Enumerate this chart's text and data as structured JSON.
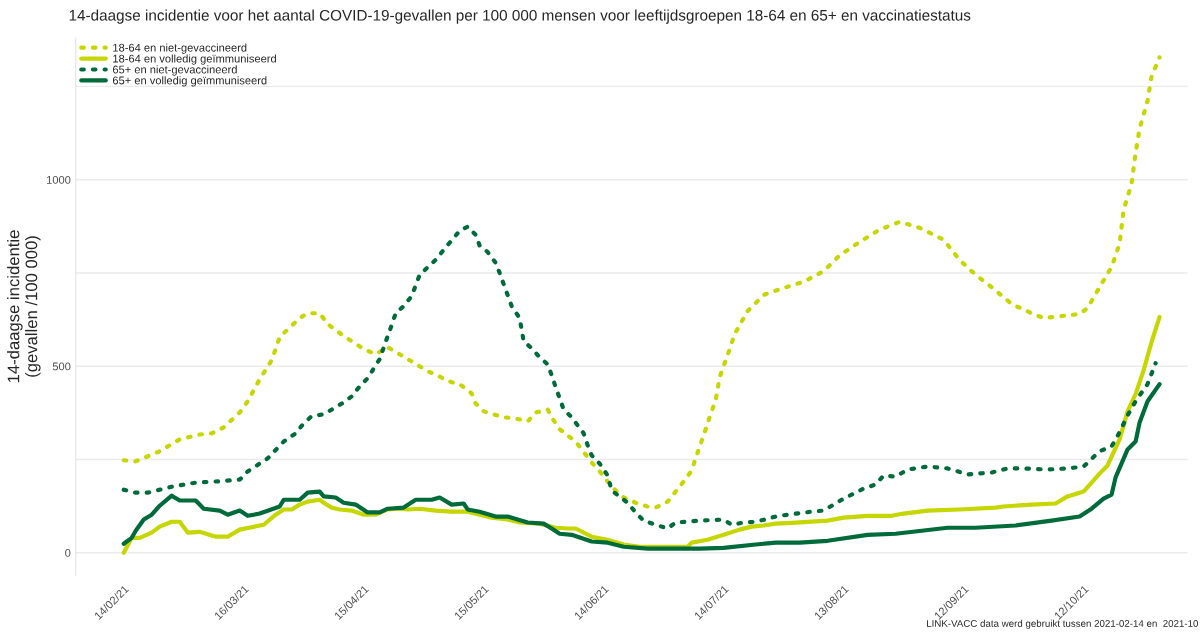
{
  "chart_data": {
    "type": "line",
    "title": "14-daagse incidentie voor het aantal COVID-19-gevallen per 100 000 mensen voor leeftijdsgroepen 18-64 en 65+ en vaccinatiestatus",
    "ylabel": "14-daagse incidentie\n(gevallen /100 000)",
    "annotations": [
      "LINK-VACC data werd gebruikt tussen 2021-02-14 en  2021-10"
    ],
    "xlim": [
      "2021-02-02",
      "2021-11-07"
    ],
    "xticks": [
      {
        "value": "2021-02-14",
        "label": "14/02/21"
      },
      {
        "value": "2021-03-16",
        "label": "16/03/21"
      },
      {
        "value": "2021-04-15",
        "label": "15/04/21"
      },
      {
        "value": "2021-05-15",
        "label": "15/05/21"
      },
      {
        "value": "2021-06-14",
        "label": "14/06/21"
      },
      {
        "value": "2021-07-14",
        "label": "14/07/21"
      },
      {
        "value": "2021-08-13",
        "label": "13/08/21"
      },
      {
        "value": "2021-09-12",
        "label": "12/09/21"
      },
      {
        "value": "2021-10-12",
        "label": "12/10/21"
      }
    ],
    "yticks": [
      0,
      {
        "value": 250,
        "label": null
      },
      500,
      {
        "value": 750,
        "label": null
      },
      1000,
      {
        "value": 1250,
        "label": null
      }
    ],
    "ylim": [
      -60,
      1380
    ],
    "grid": "y",
    "legend": "top left",
    "series": [
      {
        "name": "18-64 en niet-gevaccineerd",
        "color": "#c5d600",
        "line_style": "dotted",
        "x": [
          "2021-02-14",
          "2021-02-17",
          "2021-02-23",
          "2021-02-28",
          "2021-03-05",
          "2021-03-08",
          "2021-03-11",
          "2021-03-15",
          "2021-03-17",
          "2021-03-20",
          "2021-03-23",
          "2021-03-25",
          "2021-03-30",
          "2021-04-01",
          "2021-04-04",
          "2021-04-06",
          "2021-04-10",
          "2021-04-15",
          "2021-04-18",
          "2021-04-21",
          "2021-04-26",
          "2021-05-01",
          "2021-05-07",
          "2021-05-09",
          "2021-05-12",
          "2021-05-13",
          "2021-05-15",
          "2021-05-20",
          "2021-05-23",
          "2021-05-26",
          "2021-05-28",
          "2021-05-31",
          "2021-06-01",
          "2021-06-03",
          "2021-06-07",
          "2021-06-11",
          "2021-06-13",
          "2021-06-15",
          "2021-06-17",
          "2021-06-19",
          "2021-06-22",
          "2021-06-25",
          "2021-06-27",
          "2021-06-30",
          "2021-07-02",
          "2021-07-04",
          "2021-07-06",
          "2021-07-07",
          "2021-07-09",
          "2021-07-11",
          "2021-07-12",
          "2021-07-13",
          "2021-07-14",
          "2021-07-15",
          "2021-07-16",
          "2021-07-17",
          "2021-07-20",
          "2021-07-24",
          "2021-07-26",
          "2021-08-01",
          "2021-08-03",
          "2021-08-08",
          "2021-08-12",
          "2021-08-17",
          "2021-08-22",
          "2021-08-27",
          "2021-09-01",
          "2021-09-07",
          "2021-09-11",
          "2021-09-15",
          "2021-09-19",
          "2021-09-24",
          "2021-09-29",
          "2021-10-02",
          "2021-10-11",
          "2021-10-13",
          "2021-10-16",
          "2021-10-19",
          "2021-10-21",
          "2021-10-22",
          "2021-10-24",
          "2021-10-25",
          "2021-10-26",
          "2021-10-28",
          "2021-10-29",
          "2021-10-31"
        ],
        "values": [
          248,
          245,
          272,
          304,
          317,
          320,
          336,
          376,
          406,
          465,
          516,
          578,
          629,
          642,
          642,
          613,
          581,
          546,
          532,
          551,
          519,
          487,
          457,
          452,
          427,
          400,
          379,
          363,
          360,
          352,
          376,
          384,
          363,
          331,
          298,
          242,
          218,
          191,
          167,
          148,
          134,
          124,
          121,
          137,
          164,
          191,
          220,
          253,
          315,
          379,
          409,
          470,
          500,
          530,
          562,
          591,
          648,
          691,
          699,
          720,
          726,
          755,
          797,
          833,
          866,
          887,
          871,
          839,
          785,
          745,
          712,
          667,
          642,
          629,
          640,
          656,
          712,
          766,
          828,
          919,
          989,
          1072,
          1137,
          1212,
          1277,
          1328
        ]
      },
      {
        "name": "18-64 en volledig geïmmuniseerd",
        "color": "#c5d600",
        "line_style": "solid",
        "x": [
          "2021-02-14",
          "2021-02-16",
          "2021-02-18",
          "2021-02-21",
          "2021-02-23",
          "2021-02-26",
          "2021-02-28",
          "2021-03-02",
          "2021-03-05",
          "2021-03-09",
          "2021-03-12",
          "2021-03-15",
          "2021-03-21",
          "2021-03-24",
          "2021-03-26",
          "2021-03-28",
          "2021-03-30",
          "2021-04-01",
          "2021-04-04",
          "2021-04-05",
          "2021-04-07",
          "2021-04-09",
          "2021-04-12",
          "2021-04-15",
          "2021-04-18",
          "2021-04-21",
          "2021-04-24",
          "2021-04-26",
          "2021-04-29",
          "2021-05-03",
          "2021-05-07",
          "2021-05-11",
          "2021-05-14",
          "2021-05-17",
          "2021-05-21",
          "2021-05-24",
          "2021-05-29",
          "2021-06-02",
          "2021-06-05",
          "2021-06-07",
          "2021-06-11",
          "2021-06-15",
          "2021-06-19",
          "2021-06-23",
          "2021-06-27",
          "2021-07-01",
          "2021-07-05",
          "2021-07-06",
          "2021-07-10",
          "2021-07-14",
          "2021-07-18",
          "2021-07-21",
          "2021-07-24",
          "2021-07-27",
          "2021-07-31",
          "2021-08-09",
          "2021-08-13",
          "2021-08-19",
          "2021-08-25",
          "2021-08-28",
          "2021-09-03",
          "2021-09-11",
          "2021-09-20",
          "2021-09-22",
          "2021-09-29",
          "2021-10-05",
          "2021-10-08",
          "2021-10-12",
          "2021-10-16",
          "2021-10-18",
          "2021-10-21",
          "2021-10-23",
          "2021-10-25",
          "2021-10-27",
          "2021-10-29",
          "2021-10-31"
        ],
        "values": [
          0,
          40,
          40,
          54,
          70,
          83,
          83,
          54,
          56,
          43,
          43,
          62,
          75,
          102,
          116,
          116,
          129,
          137,
          142,
          134,
          121,
          116,
          113,
          102,
          102,
          116,
          118,
          116,
          118,
          113,
          110,
          110,
          102,
          94,
          89,
          81,
          78,
          67,
          65,
          65,
          43,
          35,
          22,
          16,
          16,
          16,
          16,
          27,
          35,
          48,
          62,
          70,
          73,
          78,
          80,
          86,
          94,
          99,
          99,
          105,
          113,
          116,
          121,
          124,
          129,
          132,
          151,
          164,
          212,
          234,
          304,
          379,
          425,
          489,
          565,
          632
        ]
      },
      {
        "name": "65+ en niet-gevaccineerd",
        "color": "#006b3a",
        "line_style": "dotted",
        "x": [
          "2021-02-14",
          "2021-02-17",
          "2021-02-20",
          "2021-02-26",
          "2021-03-04",
          "2021-03-09",
          "2021-03-15",
          "2021-03-17",
          "2021-03-20",
          "2021-03-22",
          "2021-03-26",
          "2021-03-29",
          "2021-03-31",
          "2021-04-02",
          "2021-04-05",
          "2021-04-10",
          "2021-04-12",
          "2021-04-14",
          "2021-04-16",
          "2021-04-19",
          "2021-04-21",
          "2021-04-22",
          "2021-04-23",
          "2021-04-25",
          "2021-04-27",
          "2021-04-29",
          "2021-05-03",
          "2021-05-05",
          "2021-05-09",
          "2021-05-11",
          "2021-05-13",
          "2021-05-14",
          "2021-05-16",
          "2021-05-18",
          "2021-05-19",
          "2021-05-20",
          "2021-05-22",
          "2021-05-24",
          "2021-05-25",
          "2021-05-27",
          "2021-05-29",
          "2021-05-31",
          "2021-06-01",
          "2021-06-02",
          "2021-06-03",
          "2021-06-04",
          "2021-06-06",
          "2021-06-09",
          "2021-06-10",
          "2021-06-11",
          "2021-06-13",
          "2021-06-15",
          "2021-06-16",
          "2021-06-20",
          "2021-06-22",
          "2021-06-24",
          "2021-06-27",
          "2021-06-30",
          "2021-07-02",
          "2021-07-08",
          "2021-07-14",
          "2021-07-16",
          "2021-07-19",
          "2021-07-22",
          "2021-07-25",
          "2021-07-27",
          "2021-07-30",
          "2021-08-05",
          "2021-08-08",
          "2021-08-13",
          "2021-08-18",
          "2021-08-21",
          "2021-08-23",
          "2021-08-26",
          "2021-08-29",
          "2021-09-03",
          "2021-09-08",
          "2021-09-13",
          "2021-09-19",
          "2021-09-23",
          "2021-09-27",
          "2021-10-03",
          "2021-10-08",
          "2021-10-12",
          "2021-10-16",
          "2021-10-19",
          "2021-10-21",
          "2021-10-23",
          "2021-10-25",
          "2021-10-28",
          "2021-10-30"
        ],
        "values": [
          169,
          161,
          161,
          177,
          188,
          191,
          196,
          218,
          239,
          253,
          298,
          320,
          347,
          366,
          371,
          403,
          419,
          446,
          468,
          519,
          581,
          610,
          642,
          661,
          688,
          745,
          785,
          812,
          863,
          874,
          852,
          823,
          806,
          777,
          750,
          720,
          661,
          629,
          567,
          548,
          524,
          505,
          476,
          444,
          414,
          384,
          363,
          320,
          288,
          261,
          239,
          207,
          167,
          134,
          108,
          86,
          75,
          65,
          81,
          86,
          89,
          75,
          81,
          83,
          91,
          97,
          102,
          110,
          113,
          145,
          172,
          183,
          207,
          204,
          223,
          231,
          226,
          210,
          215,
          226,
          226,
          223,
          226,
          231,
          272,
          285,
          323,
          368,
          406,
          452,
          508
        ]
      },
      {
        "name": "65+ en volledig geïmmuniseerd",
        "color": "#006b3a",
        "line_style": "solid",
        "x": [
          "2021-02-14",
          "2021-02-16",
          "2021-02-17",
          "2021-02-19",
          "2021-02-21",
          "2021-02-23",
          "2021-02-26",
          "2021-02-28",
          "2021-03-04",
          "2021-03-06",
          "2021-03-10",
          "2021-03-12",
          "2021-03-15",
          "2021-03-17",
          "2021-03-20",
          "2021-03-25",
          "2021-03-26",
          "2021-03-30",
          "2021-04-01",
          "2021-04-04",
          "2021-04-05",
          "2021-04-08",
          "2021-04-10",
          "2021-04-13",
          "2021-04-16",
          "2021-04-19",
          "2021-04-21",
          "2021-04-25",
          "2021-04-28",
          "2021-05-02",
          "2021-05-04",
          "2021-05-07",
          "2021-05-10",
          "2021-05-11",
          "2021-05-14",
          "2021-05-18",
          "2021-05-21",
          "2021-05-26",
          "2021-05-30",
          "2021-06-01",
          "2021-06-03",
          "2021-06-06",
          "2021-06-11",
          "2021-06-15",
          "2021-06-19",
          "2021-06-25",
          "2021-07-01",
          "2021-07-08",
          "2021-07-14",
          "2021-07-22",
          "2021-07-27",
          "2021-08-02",
          "2021-08-09",
          "2021-08-19",
          "2021-08-26",
          "2021-09-08",
          "2021-09-15",
          "2021-09-25",
          "2021-10-04",
          "2021-10-11",
          "2021-10-14",
          "2021-10-17",
          "2021-10-19",
          "2021-10-20",
          "2021-10-23",
          "2021-10-25",
          "2021-10-26",
          "2021-10-28",
          "2021-10-31"
        ],
        "values": [
          24,
          40,
          59,
          89,
          102,
          126,
          153,
          140,
          140,
          118,
          113,
          102,
          113,
          99,
          105,
          124,
          142,
          142,
          161,
          164,
          151,
          148,
          134,
          129,
          108,
          108,
          118,
          121,
          142,
          142,
          148,
          129,
          132,
          116,
          110,
          97,
          97,
          81,
          78,
          65,
          51,
          48,
          30,
          27,
          16,
          11,
          11,
          11,
          13,
          22,
          27,
          27,
          32,
          48,
          51,
          67,
          67,
          73,
          86,
          97,
          118,
          145,
          156,
          202,
          277,
          298,
          349,
          406,
          452
        ]
      }
    ]
  }
}
